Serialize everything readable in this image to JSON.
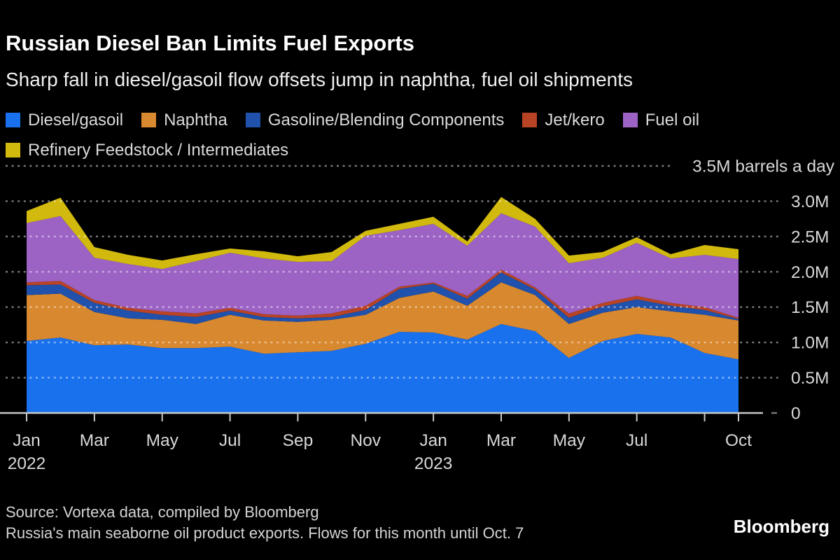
{
  "header": {
    "title": "Russian Diesel Ban Limits Fuel Exports",
    "subtitle": "Sharp fall in diesel/gasoil flow offsets jump in naphtha, fuel oil shipments"
  },
  "legend": {
    "items": [
      {
        "label": "Diesel/gasoil",
        "color": "#1a71ee"
      },
      {
        "label": "Naphtha",
        "color": "#d8882e"
      },
      {
        "label": "Gasoline/Blending Components",
        "color": "#1f51ad"
      },
      {
        "label": "Jet/kero",
        "color": "#b84325"
      },
      {
        "label": "Fuel oil",
        "color": "#9c63c5"
      },
      {
        "label": "Refinery Feedstock / Intermediates",
        "color": "#d2b90d"
      }
    ]
  },
  "chart_data": {
    "type": "area",
    "stacked": true,
    "title": "Russian Diesel Ban Limits Fuel Exports",
    "ylabel": "barrels a day",
    "ylim": [
      0,
      3.5
    ],
    "grid": "dotted-horizontal",
    "legend_position": "top",
    "x": [
      "Jan 2022",
      "Feb 2022",
      "Mar 2022",
      "Apr 2022",
      "May 2022",
      "Jun 2022",
      "Jul 2022",
      "Aug 2022",
      "Sep 2022",
      "Oct 2022",
      "Nov 2022",
      "Dec 2022",
      "Jan 2023",
      "Feb 2023",
      "Mar 2023",
      "Apr 2023",
      "May 2023",
      "Jun 2023",
      "Jul 2023",
      "Aug 2023",
      "Sep 2023",
      "Oct 2023"
    ],
    "series": [
      {
        "name": "Diesel/gasoil",
        "color": "#1a71ee",
        "values": [
          1.02,
          1.07,
          0.96,
          0.97,
          0.92,
          0.92,
          0.94,
          0.84,
          0.86,
          0.88,
          0.98,
          1.15,
          1.14,
          1.04,
          1.26,
          1.16,
          0.78,
          1.02,
          1.12,
          1.07,
          0.85,
          0.76
        ]
      },
      {
        "name": "Naphtha",
        "color": "#d8882e",
        "values": [
          0.65,
          0.62,
          0.47,
          0.37,
          0.4,
          0.34,
          0.45,
          0.47,
          0.43,
          0.44,
          0.41,
          0.48,
          0.58,
          0.48,
          0.59,
          0.51,
          0.48,
          0.4,
          0.38,
          0.37,
          0.54,
          0.55
        ]
      },
      {
        "name": "Gasoline/Blending Components",
        "color": "#1f51ad",
        "values": [
          0.14,
          0.13,
          0.13,
          0.11,
          0.07,
          0.1,
          0.06,
          0.05,
          0.05,
          0.04,
          0.07,
          0.13,
          0.11,
          0.1,
          0.14,
          0.08,
          0.09,
          0.09,
          0.11,
          0.08,
          0.07,
          0.02
        ]
      },
      {
        "name": "Jet/kero",
        "color": "#b84325",
        "values": [
          0.04,
          0.05,
          0.04,
          0.04,
          0.05,
          0.05,
          0.04,
          0.04,
          0.04,
          0.05,
          0.06,
          0.03,
          0.02,
          0.04,
          0.04,
          0.03,
          0.06,
          0.05,
          0.05,
          0.04,
          0.04,
          0.02
        ]
      },
      {
        "name": "Fuel oil",
        "color": "#9c63c5",
        "values": [
          0.84,
          0.92,
          0.6,
          0.62,
          0.6,
          0.74,
          0.78,
          0.79,
          0.76,
          0.74,
          0.99,
          0.8,
          0.83,
          0.71,
          0.8,
          0.86,
          0.71,
          0.64,
          0.75,
          0.63,
          0.74,
          0.83
        ]
      },
      {
        "name": "Refinery Feedstock / Intermediates",
        "color": "#d2b90d",
        "values": [
          0.17,
          0.26,
          0.15,
          0.13,
          0.12,
          0.1,
          0.06,
          0.1,
          0.08,
          0.13,
          0.07,
          0.09,
          0.1,
          0.06,
          0.23,
          0.11,
          0.11,
          0.08,
          0.08,
          0.06,
          0.14,
          0.14
        ]
      }
    ],
    "yticks": [
      {
        "value": 0,
        "label": "0"
      },
      {
        "value": 0.5,
        "label": "0.5M"
      },
      {
        "value": 1,
        "label": "1.0M"
      },
      {
        "value": 1.5,
        "label": "1.5M"
      },
      {
        "value": 2,
        "label": "2.0M"
      },
      {
        "value": 2.5,
        "label": "2.5M"
      },
      {
        "value": 3,
        "label": "3.0M"
      },
      {
        "value": 3.5,
        "label": "3.5M barrels a day"
      }
    ],
    "xticks": [
      {
        "index": 0,
        "label": "Jan",
        "year": "2022"
      },
      {
        "index": 2,
        "label": "Mar"
      },
      {
        "index": 4,
        "label": "May"
      },
      {
        "index": 6,
        "label": "Jul"
      },
      {
        "index": 8,
        "label": "Sep"
      },
      {
        "index": 10,
        "label": "Nov"
      },
      {
        "index": 12,
        "label": "Jan",
        "year": "2023"
      },
      {
        "index": 14,
        "label": "Mar"
      },
      {
        "index": 16,
        "label": "May"
      },
      {
        "index": 18,
        "label": "Jul"
      },
      {
        "index": 20,
        "label": ""
      },
      {
        "index": 21,
        "label": "Oct"
      }
    ]
  },
  "footer": {
    "source_line1": "Source: Vortexa data, compiled by Bloomberg",
    "source_line2": "Russia's main seaborne oil product exports. Flows for this month until Oct. 7",
    "brand": "Bloomberg"
  }
}
